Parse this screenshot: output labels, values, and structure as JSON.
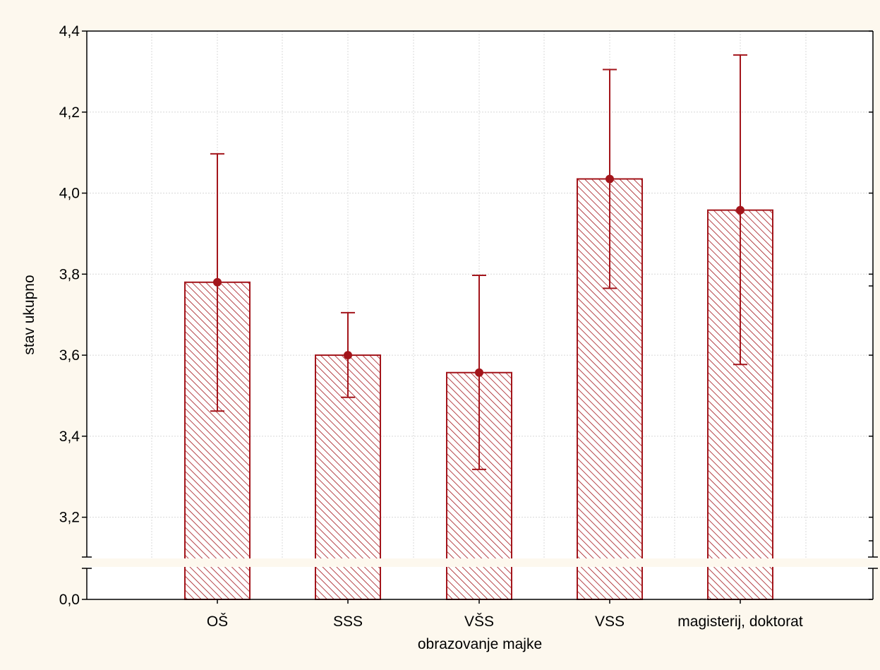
{
  "chart_data": {
    "type": "bar",
    "title": "",
    "xlabel": "obrazovanje majke",
    "ylabel": "stav ukupno",
    "categories": [
      "OŠ",
      "SSS",
      "VŠS",
      "VSS",
      "magisterij, doktorat"
    ],
    "series": [
      {
        "values": [
          3.78,
          3.6,
          3.557,
          4.035,
          3.958
        ],
        "error_low": [
          3.462,
          3.496,
          3.318,
          3.765,
          3.577
        ],
        "error_high": [
          4.097,
          3.705,
          3.797,
          4.305,
          4.341
        ]
      }
    ],
    "ylim": [
      3.1,
      4.4
    ],
    "y_axis_break": {
      "from": 0.0,
      "to": 3.1
    },
    "yticks": [
      0.0,
      3.2,
      3.4,
      3.6,
      3.8,
      4.0,
      4.2,
      4.4
    ],
    "ytick_labels": [
      "0,0",
      "3,2",
      "3,4",
      "3,6",
      "3,8",
      "4,0",
      "4,2",
      "4,4"
    ],
    "grid": true,
    "bar_fill": "diagonal hatch",
    "colors": {
      "bar": "#a3151b",
      "background": "#fdf8ee",
      "plot_background": "#ffffff",
      "grid": "#d8d8d8"
    }
  }
}
